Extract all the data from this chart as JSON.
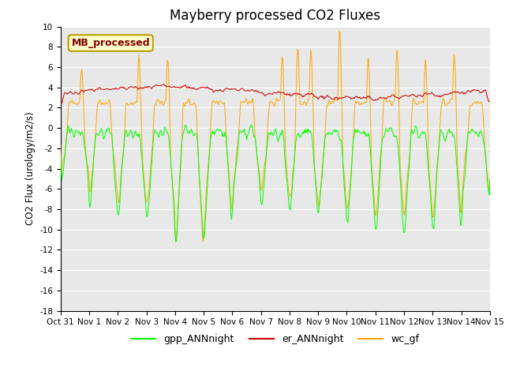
{
  "title": "Mayberry processed CO2 Fluxes",
  "ylabel": "CO2 Flux (urology/m2/s)",
  "ylim": [
    -18,
    10
  ],
  "yticks": [
    -18,
    -16,
    -14,
    -12,
    -10,
    -8,
    -6,
    -4,
    -2,
    0,
    2,
    4,
    6,
    8,
    10
  ],
  "xlabel_ticks": [
    "Oct 31",
    "Nov 1",
    "Nov 2",
    "Nov 3",
    "Nov 4",
    "Nov 5",
    "Nov 6",
    "Nov 7",
    "Nov 8",
    "Nov 9",
    "Nov 10",
    "Nov 11",
    "Nov 12",
    "Nov 13",
    "Nov 14",
    "Nov 15"
  ],
  "legend_labels": [
    "gpp_ANNnight",
    "er_ANNnight",
    "wc_gf"
  ],
  "legend_colors": [
    "#00ff00",
    "#cc0000",
    "#ffa500"
  ],
  "watermark_text": "MB_processed",
  "watermark_bg": "#ffffcc",
  "watermark_border": "#b8a000",
  "watermark_text_color": "#880000",
  "bg_color": "#e8e8e8",
  "gpp_color": "#00ff00",
  "er_color": "#cc0000",
  "wc_color": "#ffa500",
  "title_fontsize": 12,
  "seed": 42
}
